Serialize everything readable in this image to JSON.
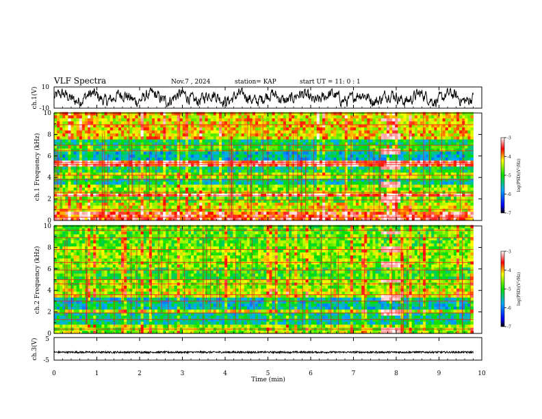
{
  "header": {
    "title": "VLF Spectra",
    "date": "Nov.7 , 2024",
    "station": "station= KAP",
    "start": "start UT = 11: 0 : 1"
  },
  "chart_data": [
    {
      "type": "line",
      "name": "ch1-waveform",
      "ylabel": "ch.1(V)",
      "ylim": [
        -10,
        10
      ],
      "ytick_labels": [
        "10",
        "-10"
      ],
      "xlim": [
        0,
        9.8
      ],
      "description_values": "oscillating signal mostly between -8 and 8 V"
    },
    {
      "type": "heatmap",
      "name": "ch1-spectrogram",
      "ylabel": "ch.1 Frequency (kHz)",
      "ylim": [
        0,
        10
      ],
      "ytick_labels": [
        "0",
        "2",
        "4",
        "6",
        "8",
        "10"
      ],
      "xlim": [
        0,
        9.8
      ],
      "colorbar": {
        "label": "log(PSD)(V²/Hz)",
        "range": [
          -7,
          -3
        ],
        "tick_labels": [
          "-3",
          "-4",
          "-5",
          "-6",
          "-7"
        ]
      },
      "bands_khz": [
        {
          "from": 0.0,
          "to": 0.6,
          "level": -3.6
        },
        {
          "from": 0.6,
          "to": 1.6,
          "level": -4.3
        },
        {
          "from": 1.6,
          "to": 2.2,
          "level": -4.8
        },
        {
          "from": 2.2,
          "to": 2.5,
          "level": -3.4
        },
        {
          "from": 2.5,
          "to": 3.2,
          "level": -4.6
        },
        {
          "from": 3.2,
          "to": 3.9,
          "level": -5.4
        },
        {
          "from": 3.9,
          "to": 4.4,
          "level": -4.6
        },
        {
          "from": 4.4,
          "to": 5.0,
          "level": -5.2
        },
        {
          "from": 5.0,
          "to": 5.5,
          "level": -3.5
        },
        {
          "from": 5.5,
          "to": 6.2,
          "level": -5.6
        },
        {
          "from": 6.2,
          "to": 6.8,
          "level": -4.9
        },
        {
          "from": 6.8,
          "to": 7.4,
          "level": -5.3
        },
        {
          "from": 7.4,
          "to": 10.0,
          "level": -4.2
        }
      ],
      "lines_khz": [
        0.3,
        1.0,
        1.9,
        2.3,
        2.6,
        3.8,
        4.2,
        5.2,
        5.4,
        6.5,
        7.0,
        8.9
      ],
      "event": {
        "t_start_min": 7.6,
        "t_end_min": 8.1
      }
    },
    {
      "type": "heatmap",
      "name": "ch2-spectrogram",
      "ylabel": "ch.2 Frequency (kHz)",
      "ylim": [
        0,
        10
      ],
      "ytick_labels": [
        "0",
        "2",
        "4",
        "6",
        "8",
        "10"
      ],
      "xlim": [
        0,
        9.8
      ],
      "colorbar": {
        "label": "log(PSD)(V²/Hz)",
        "range": [
          -7,
          -3
        ],
        "tick_labels": [
          "-3",
          "-4",
          "-5",
          "-6",
          "-7"
        ]
      },
      "bands_khz": [
        {
          "from": 0.0,
          "to": 0.6,
          "level": -4.6
        },
        {
          "from": 0.6,
          "to": 1.7,
          "level": -5.4
        },
        {
          "from": 1.7,
          "to": 2.1,
          "level": -4.4
        },
        {
          "from": 2.1,
          "to": 3.1,
          "level": -5.5
        },
        {
          "from": 3.1,
          "to": 4.2,
          "level": -4.4
        },
        {
          "from": 4.2,
          "to": 5.0,
          "level": -4.6
        },
        {
          "from": 5.0,
          "to": 6.0,
          "level": -4.9
        },
        {
          "from": 6.0,
          "to": 8.0,
          "level": -4.6
        },
        {
          "from": 8.0,
          "to": 10.0,
          "level": -4.8
        }
      ],
      "lines_khz": [
        0.4,
        1.3,
        1.9,
        3.0,
        3.6,
        4.6,
        5.0,
        5.9,
        6.6,
        7.8,
        8.9,
        9.6
      ],
      "event": {
        "t_start_min": 7.6,
        "t_end_min": 8.1
      }
    },
    {
      "type": "line",
      "name": "ch3-waveform",
      "ylabel": "ch.3(V)",
      "ylim": [
        -5,
        5
      ],
      "ytick_labels": [
        "5",
        "-5"
      ],
      "xlim": [
        0,
        9.8
      ],
      "level_v": -1.5,
      "amplitude_v": 0.4
    }
  ],
  "xaxis": {
    "label": "Time (min)",
    "range": [
      0,
      10
    ],
    "tick_labels": [
      "0",
      "1",
      "2",
      "3",
      "4",
      "5",
      "6",
      "7",
      "8",
      "9",
      "10"
    ]
  }
}
